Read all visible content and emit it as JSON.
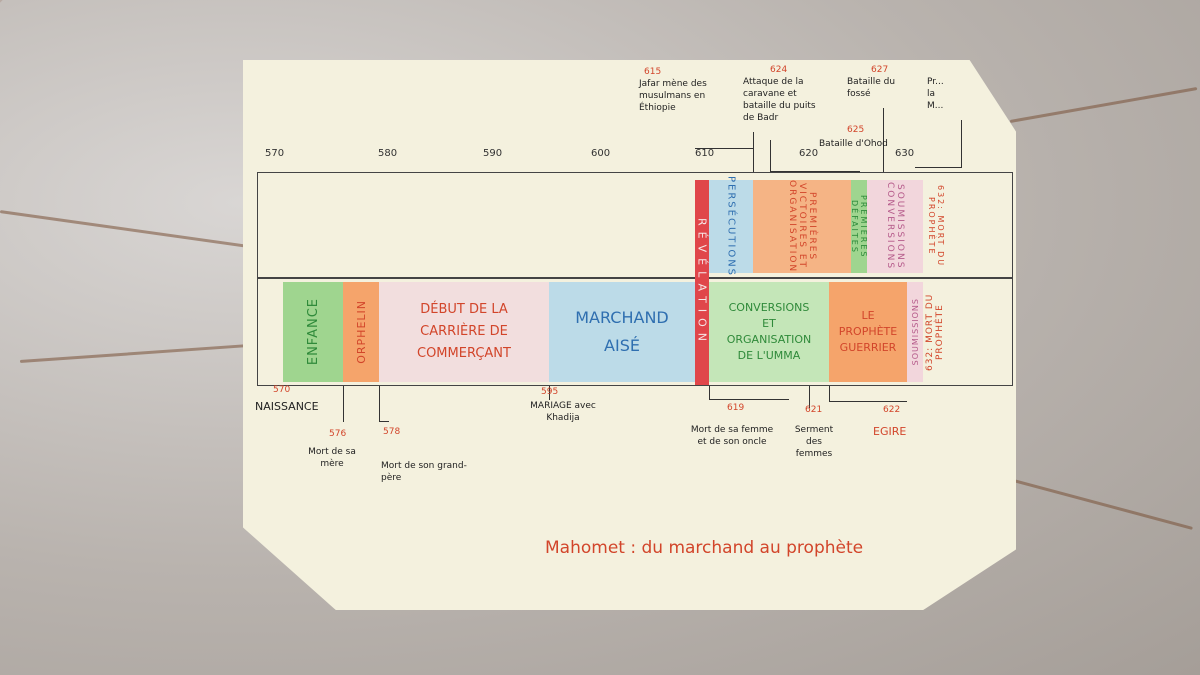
{
  "axis_ticks": [
    "570",
    "580",
    "590",
    "600",
    "610",
    "620",
    "630"
  ],
  "lower_band": {
    "enfance": "ENFANCE",
    "orphelin": "ORPHELIN",
    "debut": "DÉBUT DE LA CARRIÈRE DE COMMERÇANT",
    "marchand": "MARCHAND AISÉ",
    "revelation": "RÉVÉLATION",
    "conversions": "CONVERSIONS ET ORGANISATION DE L'UMMA",
    "prophete": "LE PROPHÈTE GUERRIER",
    "soumissions": "SOUMISSIONS",
    "mort": "632: MORT DU PROPHÈTE"
  },
  "upper_band": {
    "persecutions": "PERSÉCUTIONS",
    "premieres": "PREMIÈRES VICTOIRES ET ORGANISATION",
    "defaites": "PREMIÈRES DÉFAITES",
    "soumissions": "SOUMISSIONS CONVERSIONS"
  },
  "events_top": {
    "e615_year": "615",
    "e615": "Jafar mène des musulmans en Éthiopie",
    "e624_year": "624",
    "e624": "Attaque de la caravane et bataille du puits de Badr",
    "e627_year": "627",
    "e627": "Bataille du fossé",
    "e625_year": "625",
    "e625": "Bataille d'Ohod",
    "e_pr": "Pr... la M..."
  },
  "events_bottom": {
    "e570_year": "570",
    "e570": "NAISSANCE",
    "e576_year": "576",
    "e576": "Mort de sa mère",
    "e578_year": "578",
    "e578": "Mort de son grand-père",
    "e595_year": "595",
    "e595": "MARIAGE avec Khadija",
    "e619_year": "619",
    "e619": "Mort de sa femme et de son oncle",
    "e621_year": "621",
    "e621": "Serment des femmes",
    "e622_year": "622",
    "e622": "EGIRE"
  },
  "caption": "Mahomet : du marchand au prophète",
  "colors": {
    "green": "#9fd58f",
    "orange": "#f5a46b",
    "pink": "#f2d6d6",
    "blue": "#bcdbe8",
    "red": "#e0464a",
    "card": "#f4f1de"
  }
}
